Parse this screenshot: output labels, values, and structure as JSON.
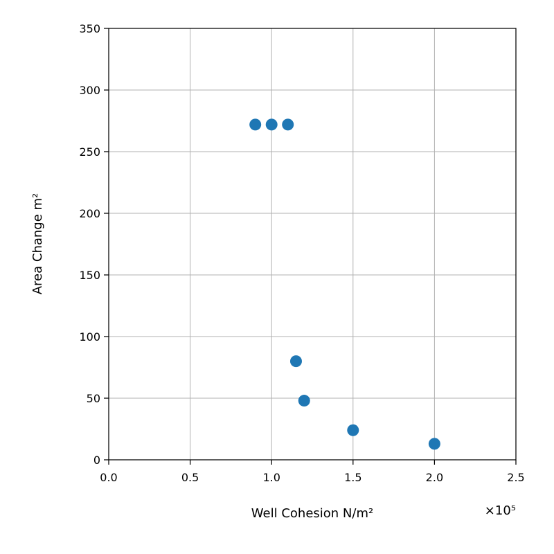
{
  "chart_data": {
    "type": "scatter",
    "xlabel": "Well Cohesion N/m²",
    "ylabel": "Area Change m²",
    "x_multiplier_label": "×10⁵",
    "x_scale": 100000,
    "xlim": [
      0,
      250000
    ],
    "ylim": [
      0,
      350
    ],
    "x_ticks": [
      0,
      50000,
      100000,
      150000,
      200000,
      250000
    ],
    "x_tick_labels": [
      "0.0",
      "0.5",
      "1.0",
      "1.5",
      "2.0",
      "2.5"
    ],
    "y_ticks": [
      0,
      50,
      100,
      150,
      200,
      250,
      300,
      350
    ],
    "y_tick_labels": [
      "0",
      "50",
      "100",
      "150",
      "200",
      "250",
      "300",
      "350"
    ],
    "grid": true,
    "marker_color": "#1f77b4",
    "series": [
      {
        "points": [
          {
            "x": 90000,
            "y": 272
          },
          {
            "x": 100000,
            "y": 272
          },
          {
            "x": 110000,
            "y": 272
          },
          {
            "x": 115000,
            "y": 80
          },
          {
            "x": 120000,
            "y": 48
          },
          {
            "x": 150000,
            "y": 24
          },
          {
            "x": 200000,
            "y": 13
          }
        ]
      }
    ]
  }
}
